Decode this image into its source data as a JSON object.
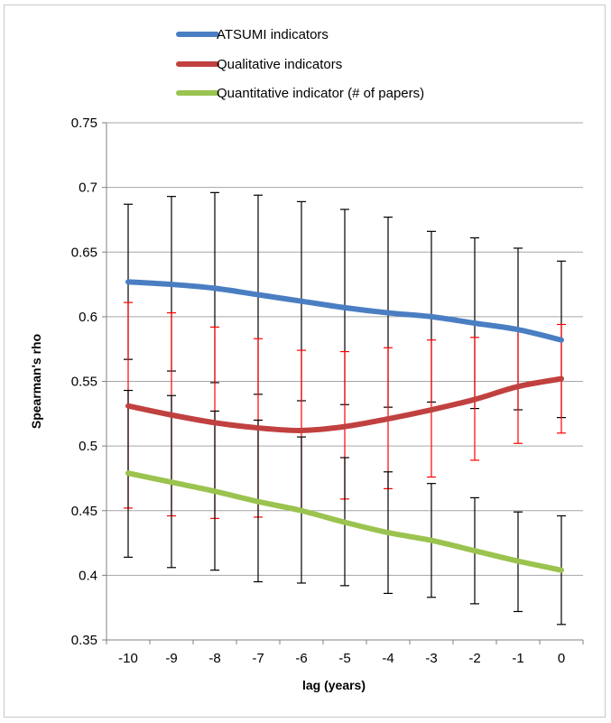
{
  "chart_data": {
    "type": "line",
    "xlabel": "lag (years)",
    "ylabel": "Spearman's rho",
    "x": [
      -10,
      -9,
      -8,
      -7,
      -6,
      -5,
      -4,
      -3,
      -2,
      -1,
      0
    ],
    "ylim": [
      0.35,
      0.75
    ],
    "yticks": [
      0.35,
      0.4,
      0.45,
      0.5,
      0.55,
      0.6,
      0.65,
      0.7,
      0.75
    ],
    "ytick_labels": [
      "0.35",
      "0.4",
      "0.45",
      "0.5",
      "0.55",
      "0.6",
      "0.65",
      "0.7",
      "0.75"
    ],
    "xtick_labels": [
      "-10",
      "-9",
      "-8",
      "-7",
      "-6",
      "-5",
      "-4",
      "-3",
      "-2",
      "-1",
      "0"
    ],
    "grid": "horizontal",
    "legend_position": "top",
    "series": [
      {
        "name": "ATSUMI indicators",
        "color": "#4a7ec2",
        "error_color": "#000000",
        "values": [
          0.627,
          0.625,
          0.622,
          0.617,
          0.612,
          0.607,
          0.603,
          0.6,
          0.595,
          0.59,
          0.582
        ],
        "error_low": [
          0.567,
          0.558,
          0.549,
          0.54,
          0.535,
          0.532,
          0.53,
          0.534,
          0.529,
          0.528,
          0.522
        ],
        "error_high": [
          0.687,
          0.693,
          0.696,
          0.694,
          0.689,
          0.683,
          0.677,
          0.666,
          0.661,
          0.653,
          0.643
        ]
      },
      {
        "name": "Qualitative indicators",
        "color": "#c0413f",
        "error_color": "#ff0000",
        "values": [
          0.531,
          0.524,
          0.518,
          0.514,
          0.512,
          0.515,
          0.521,
          0.528,
          0.536,
          0.546,
          0.552
        ],
        "error_low": [
          0.452,
          0.446,
          0.444,
          0.445,
          0.45,
          0.459,
          0.467,
          0.476,
          0.489,
          0.502,
          0.51
        ],
        "error_high": [
          0.611,
          0.603,
          0.592,
          0.583,
          0.574,
          0.573,
          0.576,
          0.582,
          0.584,
          0.589,
          0.594
        ]
      },
      {
        "name": "Quantitative indicator (# of papers)",
        "color": "#9bc34f",
        "error_color": "#000000",
        "values": [
          0.479,
          0.472,
          0.465,
          0.457,
          0.45,
          0.441,
          0.433,
          0.427,
          0.419,
          0.411,
          0.404
        ],
        "error_low": [
          0.414,
          0.406,
          0.404,
          0.395,
          0.394,
          0.392,
          0.386,
          0.383,
          0.378,
          0.372,
          0.362
        ],
        "error_high": [
          0.543,
          0.539,
          0.527,
          0.52,
          0.507,
          0.491,
          0.48,
          0.471,
          0.46,
          0.449,
          0.446
        ]
      }
    ]
  }
}
